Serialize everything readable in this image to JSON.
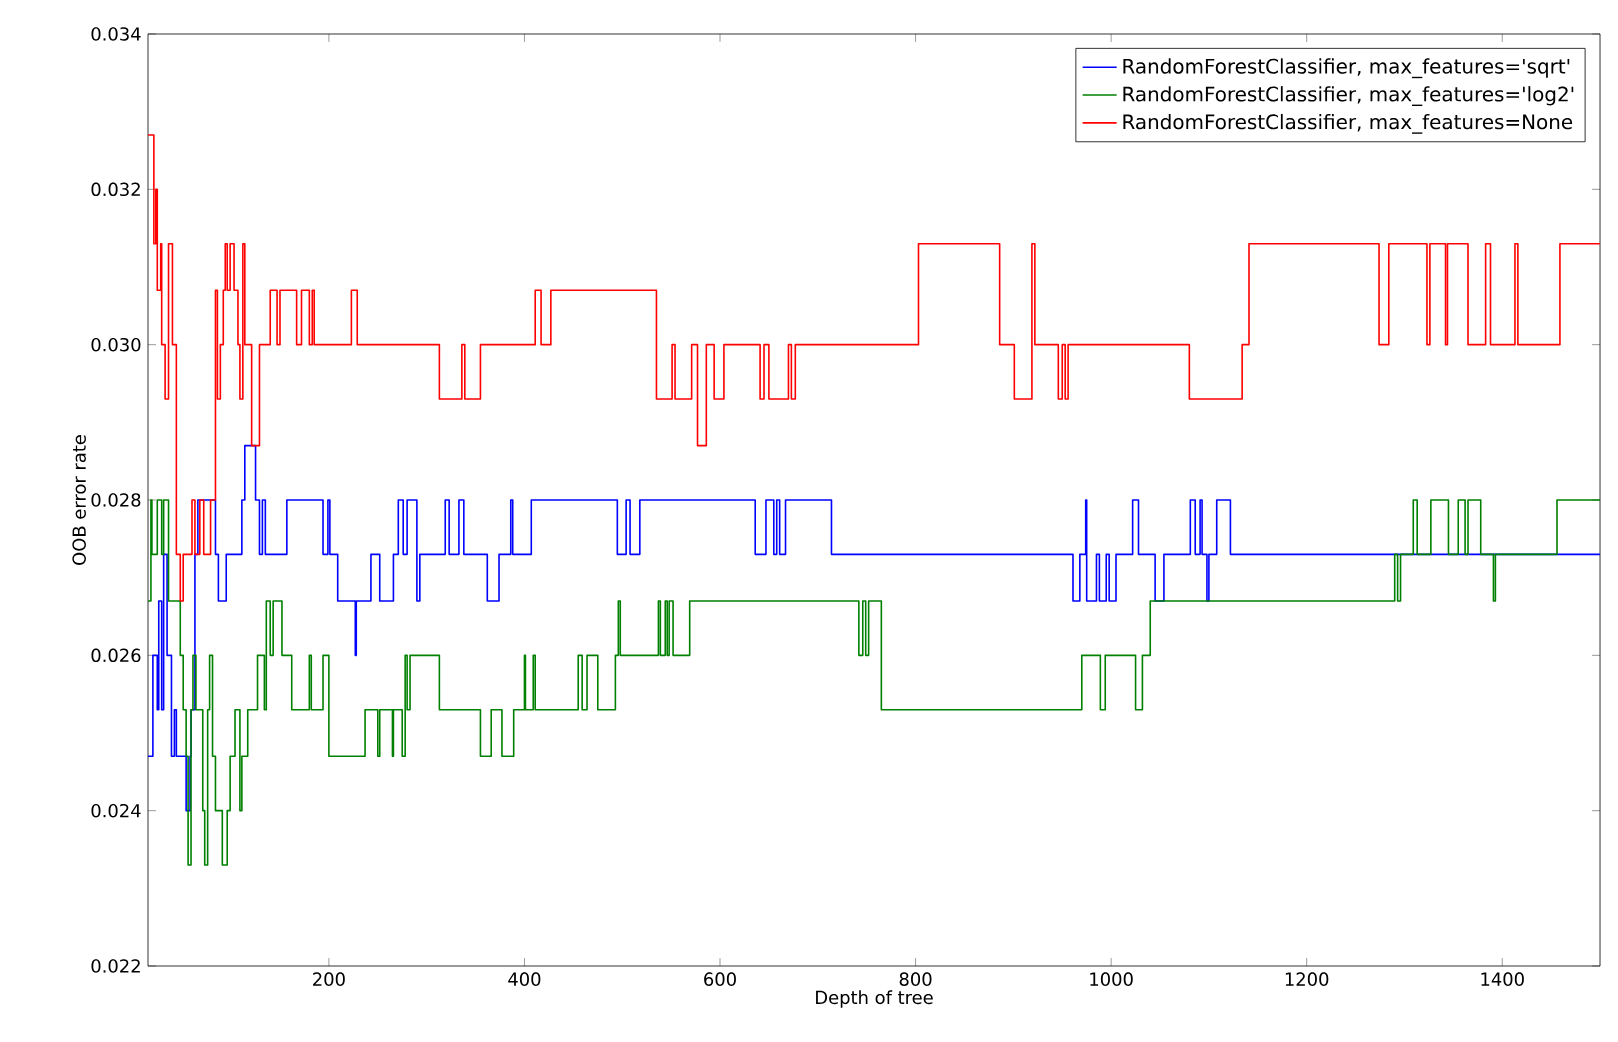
{
  "chart_data": {
    "type": "step",
    "xlabel": "Depth of tree",
    "ylabel": "OOB error rate",
    "xlim": [
      15,
      1500
    ],
    "ylim": [
      0.022,
      0.034
    ],
    "xticks": [
      200,
      400,
      600,
      800,
      1000,
      1200,
      1400
    ],
    "yticks": [
      {
        "value": 0.022,
        "label": "0.022"
      },
      {
        "value": 0.024,
        "label": "0.024"
      },
      {
        "value": 0.026,
        "label": "0.026"
      },
      {
        "value": 0.028,
        "label": "0.028"
      },
      {
        "value": 0.03,
        "label": "0.030"
      },
      {
        "value": 0.032,
        "label": "0.032"
      },
      {
        "value": 0.034,
        "label": "0.034"
      }
    ],
    "legend": "top right",
    "grid": false,
    "line_style": "solid",
    "series": [
      {
        "name": "RandomForestClassifier, max_features='sqrt'",
        "color": "#0000ff",
        "x": [
          15,
          20,
          24.5,
          26,
          29,
          31,
          34.5,
          39,
          42,
          44,
          54,
          58,
          59,
          63,
          66,
          84,
          87,
          95,
          111,
          114,
          125,
          129,
          132,
          135,
          157,
          194,
          199,
          201,
          209,
          227,
          228,
          243,
          252,
          266,
          271,
          276,
          280,
          290,
          293,
          319,
          323,
          333,
          338,
          362,
          374,
          386,
          388,
          407,
          495,
          504,
          508,
          518,
          636,
          647,
          655,
          658,
          661,
          667,
          714,
          961,
          968,
          974,
          975,
          985,
          988,
          995,
          998,
          1005,
          1022,
          1028,
          1045,
          1054,
          1081,
          1086,
          1091,
          1093,
          1098,
          1100,
          1108,
          1122,
          1500
        ],
        "values": [
          0.0247,
          0.026,
          0.0253,
          0.0267,
          0.0253,
          0.0273,
          0.026,
          0.0247,
          0.0253,
          0.0247,
          0.024,
          0.0247,
          0.0253,
          0.0273,
          0.028,
          0.0273,
          0.0267,
          0.0273,
          0.028,
          0.0287,
          0.028,
          0.0273,
          0.028,
          0.0273,
          0.028,
          0.0273,
          0.028,
          0.0273,
          0.0267,
          0.026,
          0.0267,
          0.0273,
          0.0267,
          0.0273,
          0.028,
          0.0273,
          0.028,
          0.0267,
          0.0273,
          0.028,
          0.0273,
          0.028,
          0.0273,
          0.0267,
          0.0273,
          0.028,
          0.0273,
          0.028,
          0.0273,
          0.028,
          0.0273,
          0.028,
          0.0273,
          0.028,
          0.0273,
          0.028,
          0.0273,
          0.028,
          0.0273,
          0.0267,
          0.0273,
          0.028,
          0.0267,
          0.0273,
          0.0267,
          0.0273,
          0.0267,
          0.0273,
          0.028,
          0.0273,
          0.0267,
          0.0273,
          0.028,
          0.0273,
          0.028,
          0.0273,
          0.0267,
          0.0273,
          0.028,
          0.0273,
          0.0273
        ]
      },
      {
        "name": "RandomForestClassifier, max_features='log2'",
        "color": "#008000",
        "x": [
          15,
          18,
          19,
          24.5,
          29,
          31,
          36,
          48,
          51,
          54,
          56,
          59,
          61,
          64,
          71,
          73,
          76,
          78,
          81,
          84,
          91,
          96,
          99,
          104,
          109,
          111,
          117,
          127,
          134,
          136,
          140,
          143,
          152,
          162,
          180,
          182,
          194,
          200,
          237,
          250,
          252,
          265,
          266,
          275,
          278,
          280,
          283,
          313,
          355,
          366,
          377,
          389,
          400,
          401,
          409,
          411,
          455,
          459,
          464,
          475,
          493,
          496,
          498,
          537,
          539,
          544,
          546,
          548,
          552,
          569,
          742,
          746,
          749,
          752,
          765,
          970,
          989,
          994,
          1025,
          1032,
          1040,
          1290,
          1293,
          1296,
          1309,
          1313,
          1327,
          1345,
          1355,
          1362,
          1365,
          1378,
          1391,
          1393,
          1456,
          1500
        ],
        "values": [
          0.0267,
          0.028,
          0.0273,
          0.028,
          0.0273,
          0.028,
          0.0267,
          0.026,
          0.0253,
          0.0247,
          0.0233,
          0.0253,
          0.026,
          0.0253,
          0.024,
          0.0233,
          0.0253,
          0.026,
          0.0247,
          0.024,
          0.0233,
          0.024,
          0.0247,
          0.0253,
          0.024,
          0.0247,
          0.0253,
          0.026,
          0.0253,
          0.0267,
          0.026,
          0.0267,
          0.026,
          0.0253,
          0.026,
          0.0253,
          0.026,
          0.0247,
          0.0253,
          0.0247,
          0.0253,
          0.0247,
          0.0253,
          0.0247,
          0.026,
          0.0253,
          0.026,
          0.0253,
          0.0247,
          0.0253,
          0.0247,
          0.0253,
          0.026,
          0.0253,
          0.026,
          0.0253,
          0.026,
          0.0253,
          0.026,
          0.0253,
          0.026,
          0.0267,
          0.026,
          0.0267,
          0.026,
          0.0267,
          0.026,
          0.0267,
          0.026,
          0.0267,
          0.026,
          0.0267,
          0.026,
          0.0267,
          0.0253,
          0.026,
          0.0253,
          0.026,
          0.0253,
          0.026,
          0.0267,
          0.0273,
          0.0267,
          0.0273,
          0.028,
          0.0273,
          0.028,
          0.0273,
          0.028,
          0.0273,
          0.028,
          0.0273,
          0.0267,
          0.0273,
          0.028,
          0.028
        ]
      },
      {
        "name": "RandomForestClassifier, max_features=None",
        "color": "#ff0000",
        "x": [
          15,
          21,
          23,
          24.5,
          28,
          29,
          32.5,
          36,
          40,
          44,
          48,
          51,
          60,
          63,
          68,
          72,
          79,
          84,
          86,
          89,
          92,
          94,
          96,
          99,
          103,
          107,
          109,
          112,
          114,
          121,
          129,
          140,
          147,
          150,
          167,
          172,
          180,
          183,
          185,
          223,
          229,
          313,
          336,
          339,
          355,
          411,
          417,
          427,
          535,
          551,
          554,
          571,
          577,
          586,
          594,
          604,
          641,
          645,
          650,
          670,
          673,
          677,
          803,
          886,
          901,
          919,
          922,
          946,
          950,
          953,
          956,
          1080,
          1134,
          1141,
          1274,
          1284,
          1323,
          1326,
          1342,
          1344,
          1365,
          1383,
          1388,
          1413,
          1416,
          1459,
          1500
        ],
        "values": [
          0.0327,
          0.0313,
          0.032,
          0.0307,
          0.0313,
          0.03,
          0.0293,
          0.0313,
          0.03,
          0.0273,
          0.0267,
          0.0273,
          0.028,
          0.0273,
          0.028,
          0.0273,
          0.028,
          0.0307,
          0.0293,
          0.03,
          0.0307,
          0.0313,
          0.0307,
          0.0313,
          0.0307,
          0.03,
          0.0293,
          0.0313,
          0.03,
          0.0287,
          0.03,
          0.0307,
          0.03,
          0.0307,
          0.03,
          0.0307,
          0.03,
          0.0307,
          0.03,
          0.0307,
          0.03,
          0.0293,
          0.03,
          0.0293,
          0.03,
          0.0307,
          0.03,
          0.0307,
          0.0293,
          0.03,
          0.0293,
          0.03,
          0.0287,
          0.03,
          0.0293,
          0.03,
          0.0293,
          0.03,
          0.0293,
          0.03,
          0.0293,
          0.03,
          0.0313,
          0.03,
          0.0293,
          0.0313,
          0.03,
          0.0293,
          0.03,
          0.0293,
          0.03,
          0.0293,
          0.03,
          0.0313,
          0.03,
          0.0313,
          0.03,
          0.0313,
          0.03,
          0.0313,
          0.03,
          0.0313,
          0.03,
          0.0313,
          0.03,
          0.0313,
          0.0313
        ]
      }
    ]
  }
}
